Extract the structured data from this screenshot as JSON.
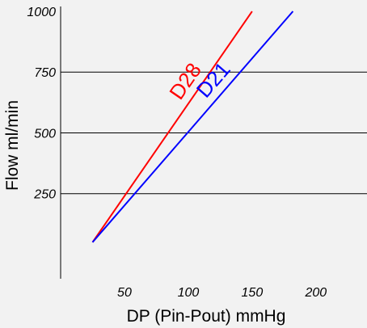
{
  "chart_data": {
    "type": "line",
    "xlabel": "DP (Pin-Pout) mmHg",
    "ylabel": "Flow ml/min",
    "xlim": [
      0,
      240
    ],
    "ylim": [
      -100,
      1020
    ],
    "x_ticks": [
      50,
      100,
      150,
      200
    ],
    "y_ticks": [
      250,
      500,
      750,
      1000
    ],
    "grid": "horizontal",
    "legend": "none",
    "series": [
      {
        "name": "D28",
        "color": "#ff0000",
        "x": [
          25,
          150
        ],
        "y": [
          50,
          1000
        ]
      },
      {
        "name": "D21",
        "color": "#0000ff",
        "x": [
          25,
          182
        ],
        "y": [
          50,
          1000
        ]
      }
    ]
  }
}
